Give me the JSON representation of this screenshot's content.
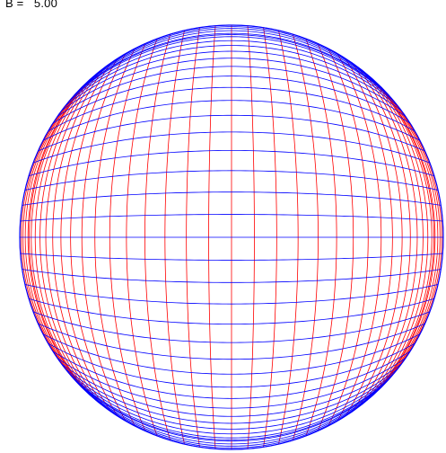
{
  "readout": {
    "label": "B =",
    "value": "5.00"
  },
  "grid": {
    "parameter_b": 5.0,
    "lines_per_direction": 41,
    "colors": {
      "vertical_family": "#ff0000",
      "horizontal_family": "#0000ff"
    }
  }
}
